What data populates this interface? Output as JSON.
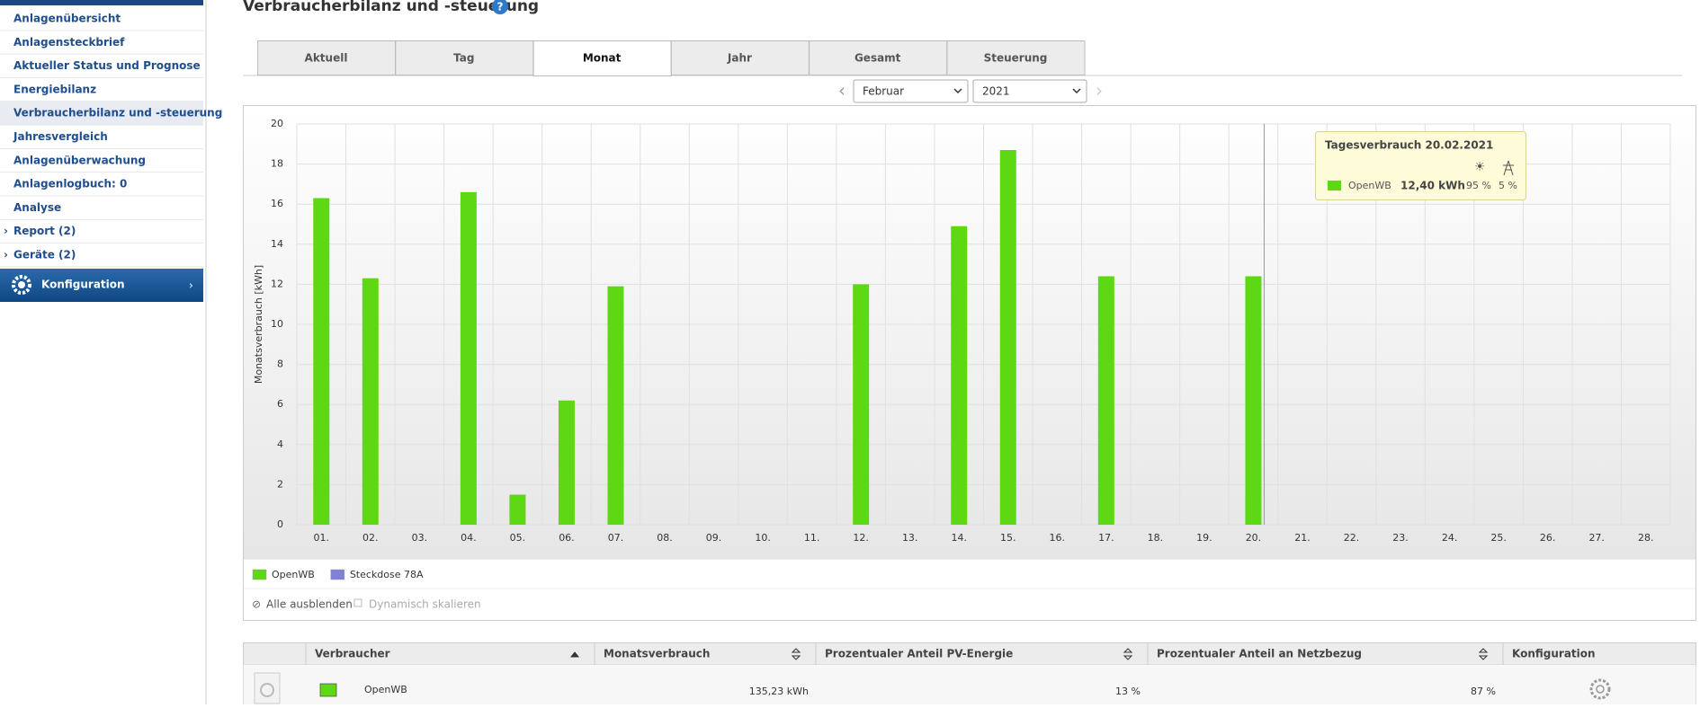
{
  "sidebar": {
    "items": [
      "Anlagenübersicht",
      "Anlagensteckbrief",
      "Aktueller Status und Prognose",
      "Energiebilanz",
      "Verbraucherbilanz und -steuerung",
      "Jahresvergleich",
      "Anlagenüberwachung",
      "Anlagenlogbuch: 0",
      "Analyse",
      "Report (2)",
      "Geräte (2)"
    ],
    "config": "Konfiguration"
  },
  "page_title": "Verbraucherbilanz und -steuerung",
  "tabs": [
    "Aktuell",
    "Tag",
    "Monat",
    "Jahr",
    "Gesamt",
    "Steuerung"
  ],
  "selects": {
    "month": "Februar",
    "year": "2021"
  },
  "chart_data": {
    "type": "bar",
    "ylabel": "Monatsverbrauch [kWh]",
    "categories": [
      "01.",
      "02.",
      "03.",
      "04.",
      "05.",
      "06.",
      "07.",
      "08.",
      "09.",
      "10.",
      "11.",
      "12.",
      "13.",
      "14.",
      "15.",
      "16.",
      "17.",
      "18.",
      "19.",
      "20.",
      "21.",
      "22.",
      "23.",
      "24.",
      "25.",
      "26.",
      "27.",
      "28."
    ],
    "series": [
      {
        "name": "OpenWB",
        "color": "#5fd814",
        "values": [
          16.3,
          12.3,
          0,
          16.6,
          1.5,
          6.2,
          11.9,
          0,
          0,
          0,
          0,
          12.0,
          0,
          14.9,
          18.7,
          0,
          12.4,
          0,
          0,
          12.4,
          0,
          0,
          0,
          0,
          0,
          0,
          0,
          0
        ]
      },
      {
        "name": "Steckdose 78A",
        "color": "#7f80d6",
        "values": [
          null,
          null,
          null,
          null,
          null,
          null,
          null,
          null,
          null,
          null,
          null,
          null,
          null,
          null,
          null,
          null,
          null,
          null,
          null,
          null,
          null,
          null,
          null,
          null,
          null,
          null,
          null,
          null
        ]
      }
    ],
    "ylim": [
      0,
      20
    ],
    "yticks": [
      0,
      2,
      4,
      6,
      8,
      10,
      12,
      14,
      16,
      18,
      20
    ],
    "grid": true,
    "tooltip": {
      "title": "Tagesverbrauch 20.02.2021",
      "series": "OpenWB",
      "value": "12,40 kWh",
      "pv": "95 %",
      "grid": "5 %"
    }
  },
  "chart_controls": {
    "hide_all": "Alle ausblenden",
    "dynamic": "Dynamisch skalieren"
  },
  "table": {
    "headers": [
      "Verbraucher",
      "Monatsverbrauch",
      "Prozentualer Anteil PV-Energie",
      "Prozentualer Anteil an Netzbezug",
      "Konfiguration"
    ],
    "rows": [
      [
        "OpenWB",
        "135,23 kWh",
        "13 %",
        "87 %"
      ]
    ]
  }
}
